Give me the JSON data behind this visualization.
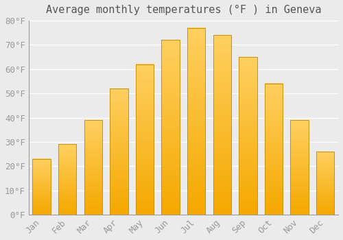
{
  "title": "Average monthly temperatures (°F ) in Geneva",
  "months": [
    "Jan",
    "Feb",
    "Mar",
    "Apr",
    "May",
    "Jun",
    "Jul",
    "Aug",
    "Sep",
    "Oct",
    "Nov",
    "Dec"
  ],
  "values": [
    23,
    29,
    39,
    52,
    62,
    72,
    77,
    74,
    65,
    54,
    39,
    26
  ],
  "bar_color_top": "#FFD060",
  "bar_color_bottom": "#F5A800",
  "bar_edge_color": "#C8900A",
  "ylim": [
    0,
    80
  ],
  "yticks": [
    0,
    10,
    20,
    30,
    40,
    50,
    60,
    70,
    80
  ],
  "background_color": "#EBEBEB",
  "grid_color": "#FFFFFF",
  "title_fontsize": 11,
  "tick_fontsize": 9,
  "font_family": "monospace",
  "tick_color": "#999999",
  "title_color": "#555555",
  "bar_width": 0.7
}
